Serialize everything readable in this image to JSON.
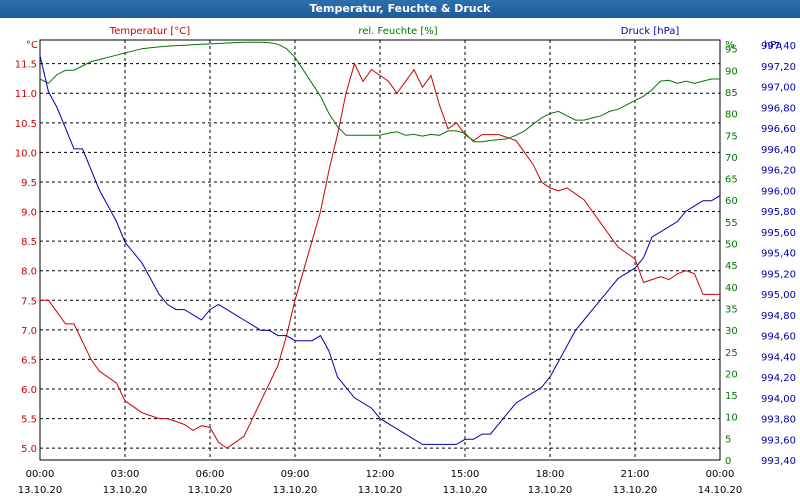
{
  "window": {
    "title": "Temperatur, Feuchte & Druck"
  },
  "colors": {
    "temperature": "#cc0000",
    "humidity": "#007700",
    "pressure": "#0000aa",
    "grid": "#000000",
    "title_bar": "#2d6fb0"
  },
  "chart_data": {
    "type": "line",
    "grid": true,
    "x_labels": [
      {
        "time": "00:00",
        "date": "13.10.20"
      },
      {
        "time": "03:00",
        "date": "13.10.20"
      },
      {
        "time": "06:00",
        "date": "13.10.20"
      },
      {
        "time": "09:00",
        "date": "13.10.20"
      },
      {
        "time": "12:00",
        "date": "13.10.20"
      },
      {
        "time": "15:00",
        "date": "13.10.20"
      },
      {
        "time": "18:00",
        "date": "13.10.20"
      },
      {
        "time": "21:00",
        "date": "13.10.20"
      },
      {
        "time": "00:00",
        "date": "14.10.20"
      }
    ],
    "xlim": [
      0,
      24
    ],
    "axes": {
      "temperature": {
        "unit": "°C",
        "label": "Temperatur [°C]",
        "ylim": [
          4.8,
          11.9
        ],
        "ticks": [
          "5.0",
          "5.5",
          "6.0",
          "6.5",
          "7.0",
          "7.5",
          "8.0",
          "8.5",
          "9.0",
          "9.5",
          "10.0",
          "10.5",
          "11.0",
          "11.5"
        ]
      },
      "humidity": {
        "unit": "%",
        "label": "rel. Feuchte [%]",
        "ylim": [
          0,
          97
        ],
        "ticks": [
          "0",
          "5",
          "10",
          "15",
          "20",
          "25",
          "30",
          "35",
          "40",
          "45",
          "50",
          "55",
          "60",
          "65",
          "70",
          "75",
          "80",
          "85",
          "90",
          "95"
        ]
      },
      "pressure": {
        "unit": "hPa",
        "label": "Druck [hPa]",
        "ylim": [
          993.4,
          997.45
        ],
        "ticks": [
          "993,40",
          "993,60",
          "993,80",
          "994,00",
          "994,20",
          "994,40",
          "994,60",
          "994,80",
          "995,00",
          "995,20",
          "995,40",
          "995,60",
          "995,80",
          "996,00",
          "996,20",
          "996,40",
          "996,60",
          "996,80",
          "997,00",
          "997,20",
          "997,40"
        ]
      }
    },
    "series": [
      {
        "name": "Temperatur [°C]",
        "axis": "temperature",
        "x": [
          0,
          0.3,
          0.6,
          0.9,
          1.2,
          1.5,
          1.8,
          2.1,
          2.4,
          2.7,
          3.0,
          3.3,
          3.6,
          3.9,
          4.2,
          4.5,
          4.8,
          5.1,
          5.4,
          5.7,
          6.0,
          6.3,
          6.6,
          6.9,
          7.2,
          7.5,
          7.8,
          8.1,
          8.4,
          8.7,
          9.0,
          9.3,
          9.6,
          9.9,
          10.2,
          10.5,
          10.8,
          11.1,
          11.4,
          11.7,
          12.0,
          12.3,
          12.6,
          12.9,
          13.2,
          13.5,
          13.8,
          14.1,
          14.4,
          14.7,
          15.0,
          15.3,
          15.6,
          15.9,
          16.2,
          16.5,
          16.8,
          17.1,
          17.4,
          17.7,
          18.0,
          18.3,
          18.6,
          18.9,
          19.2,
          19.5,
          19.8,
          20.1,
          20.4,
          20.7,
          21.0,
          21.3,
          21.6,
          21.9,
          22.2,
          22.5,
          22.8,
          23.1,
          23.4,
          23.7,
          24.0
        ],
        "values": [
          7.5,
          7.5,
          7.3,
          7.1,
          7.1,
          6.8,
          6.5,
          6.3,
          6.2,
          6.1,
          5.8,
          5.7,
          5.6,
          5.55,
          5.5,
          5.5,
          5.45,
          5.4,
          5.3,
          5.38,
          5.35,
          5.1,
          5.0,
          5.1,
          5.2,
          5.5,
          5.8,
          6.1,
          6.4,
          6.9,
          7.5,
          8.0,
          8.5,
          9.0,
          9.7,
          10.3,
          11.0,
          11.5,
          11.2,
          11.4,
          11.3,
          11.2,
          11.0,
          11.2,
          11.4,
          11.1,
          11.3,
          10.8,
          10.4,
          10.5,
          10.3,
          10.2,
          10.3,
          10.3,
          10.3,
          10.25,
          10.2,
          10.0,
          9.8,
          9.5,
          9.4,
          9.35,
          9.4,
          9.3,
          9.2,
          9.0,
          8.8,
          8.6,
          8.4,
          8.3,
          8.2,
          7.8,
          7.85,
          7.9,
          7.85,
          7.95,
          8.0,
          7.95,
          7.6,
          7.6,
          7.6
        ]
      },
      {
        "name": "rel. Feuchte [%]",
        "axis": "humidity",
        "x": [
          0,
          0.3,
          0.6,
          0.9,
          1.2,
          1.5,
          1.8,
          2.1,
          2.4,
          2.7,
          3.0,
          3.3,
          3.6,
          3.9,
          4.2,
          4.5,
          4.8,
          5.1,
          5.4,
          5.7,
          6.0,
          6.3,
          6.6,
          6.9,
          7.2,
          7.5,
          7.8,
          8.1,
          8.4,
          8.7,
          9.0,
          9.3,
          9.6,
          9.9,
          10.2,
          10.5,
          10.8,
          11.1,
          11.4,
          11.7,
          12.0,
          12.3,
          12.6,
          12.9,
          13.2,
          13.5,
          13.8,
          14.1,
          14.4,
          14.7,
          15.0,
          15.3,
          15.6,
          15.9,
          16.2,
          16.5,
          16.8,
          17.1,
          17.4,
          17.7,
          18.0,
          18.3,
          18.6,
          18.9,
          19.2,
          19.5,
          19.8,
          20.1,
          20.4,
          20.7,
          21.0,
          21.3,
          21.6,
          21.9,
          22.2,
          22.5,
          22.8,
          23.1,
          23.4,
          23.7,
          24.0
        ],
        "values": [
          88,
          87,
          89,
          90,
          90,
          91,
          92,
          92.5,
          93,
          93.5,
          94,
          94.5,
          95,
          95.2,
          95.4,
          95.6,
          95.7,
          95.8,
          95.9,
          96,
          96.1,
          96.2,
          96.3,
          96.4,
          96.5,
          96.5,
          96.5,
          96.4,
          96,
          95,
          93,
          90,
          87,
          84,
          80,
          77,
          75,
          75,
          75,
          75,
          75,
          75.5,
          75.8,
          75,
          75.2,
          74.8,
          75.2,
          75,
          76,
          76,
          75.5,
          73.5,
          73.5,
          73.8,
          74,
          74.2,
          75,
          76,
          77.5,
          79,
          80,
          80.5,
          79.5,
          78.5,
          78.5,
          79,
          79.5,
          80.5,
          81,
          82,
          83,
          84,
          85.5,
          87.5,
          87.7,
          87,
          87.5,
          87,
          87.5,
          88,
          88
        ]
      },
      {
        "name": "Druck [hPa]",
        "axis": "pressure",
        "x": [
          0,
          0.3,
          0.6,
          0.9,
          1.2,
          1.5,
          1.8,
          2.1,
          2.4,
          2.7,
          3.0,
          3.3,
          3.6,
          3.9,
          4.2,
          4.5,
          4.8,
          5.1,
          5.4,
          5.7,
          6.0,
          6.3,
          6.6,
          6.9,
          7.2,
          7.5,
          7.8,
          8.1,
          8.4,
          8.7,
          9.0,
          9.3,
          9.6,
          9.9,
          10.2,
          10.5,
          10.8,
          11.1,
          11.4,
          11.7,
          12.0,
          12.3,
          12.6,
          12.9,
          13.2,
          13.5,
          13.8,
          14.1,
          14.4,
          14.7,
          15.0,
          15.3,
          15.6,
          15.9,
          16.2,
          16.5,
          16.8,
          17.1,
          17.4,
          17.7,
          18.0,
          18.3,
          18.6,
          18.9,
          19.2,
          19.5,
          19.8,
          20.1,
          20.4,
          20.7,
          21.0,
          21.3,
          21.6,
          21.9,
          22.2,
          22.5,
          22.8,
          23.1,
          23.4,
          23.7,
          24.0
        ],
        "values": [
          997.3,
          996.95,
          996.8,
          996.6,
          996.4,
          996.4,
          996.2,
          996.0,
          995.85,
          995.7,
          995.5,
          995.4,
          995.3,
          995.15,
          995.0,
          994.9,
          994.85,
          994.85,
          994.8,
          994.75,
          994.85,
          994.9,
          994.85,
          994.8,
          994.75,
          994.7,
          994.65,
          994.65,
          994.6,
          994.6,
          994.55,
          994.55,
          994.55,
          994.6,
          994.45,
          994.2,
          994.1,
          994.0,
          993.95,
          993.9,
          993.8,
          993.75,
          993.7,
          993.65,
          993.6,
          993.55,
          993.55,
          993.55,
          993.55,
          993.55,
          993.6,
          993.6,
          993.65,
          993.65,
          993.75,
          993.85,
          993.95,
          994.0,
          994.05,
          994.1,
          994.2,
          994.35,
          994.5,
          994.65,
          994.75,
          994.85,
          994.95,
          995.05,
          995.15,
          995.2,
          995.25,
          995.35,
          995.55,
          995.6,
          995.65,
          995.7,
          995.8,
          995.85,
          995.9,
          995.9,
          995.95
        ]
      }
    ]
  }
}
